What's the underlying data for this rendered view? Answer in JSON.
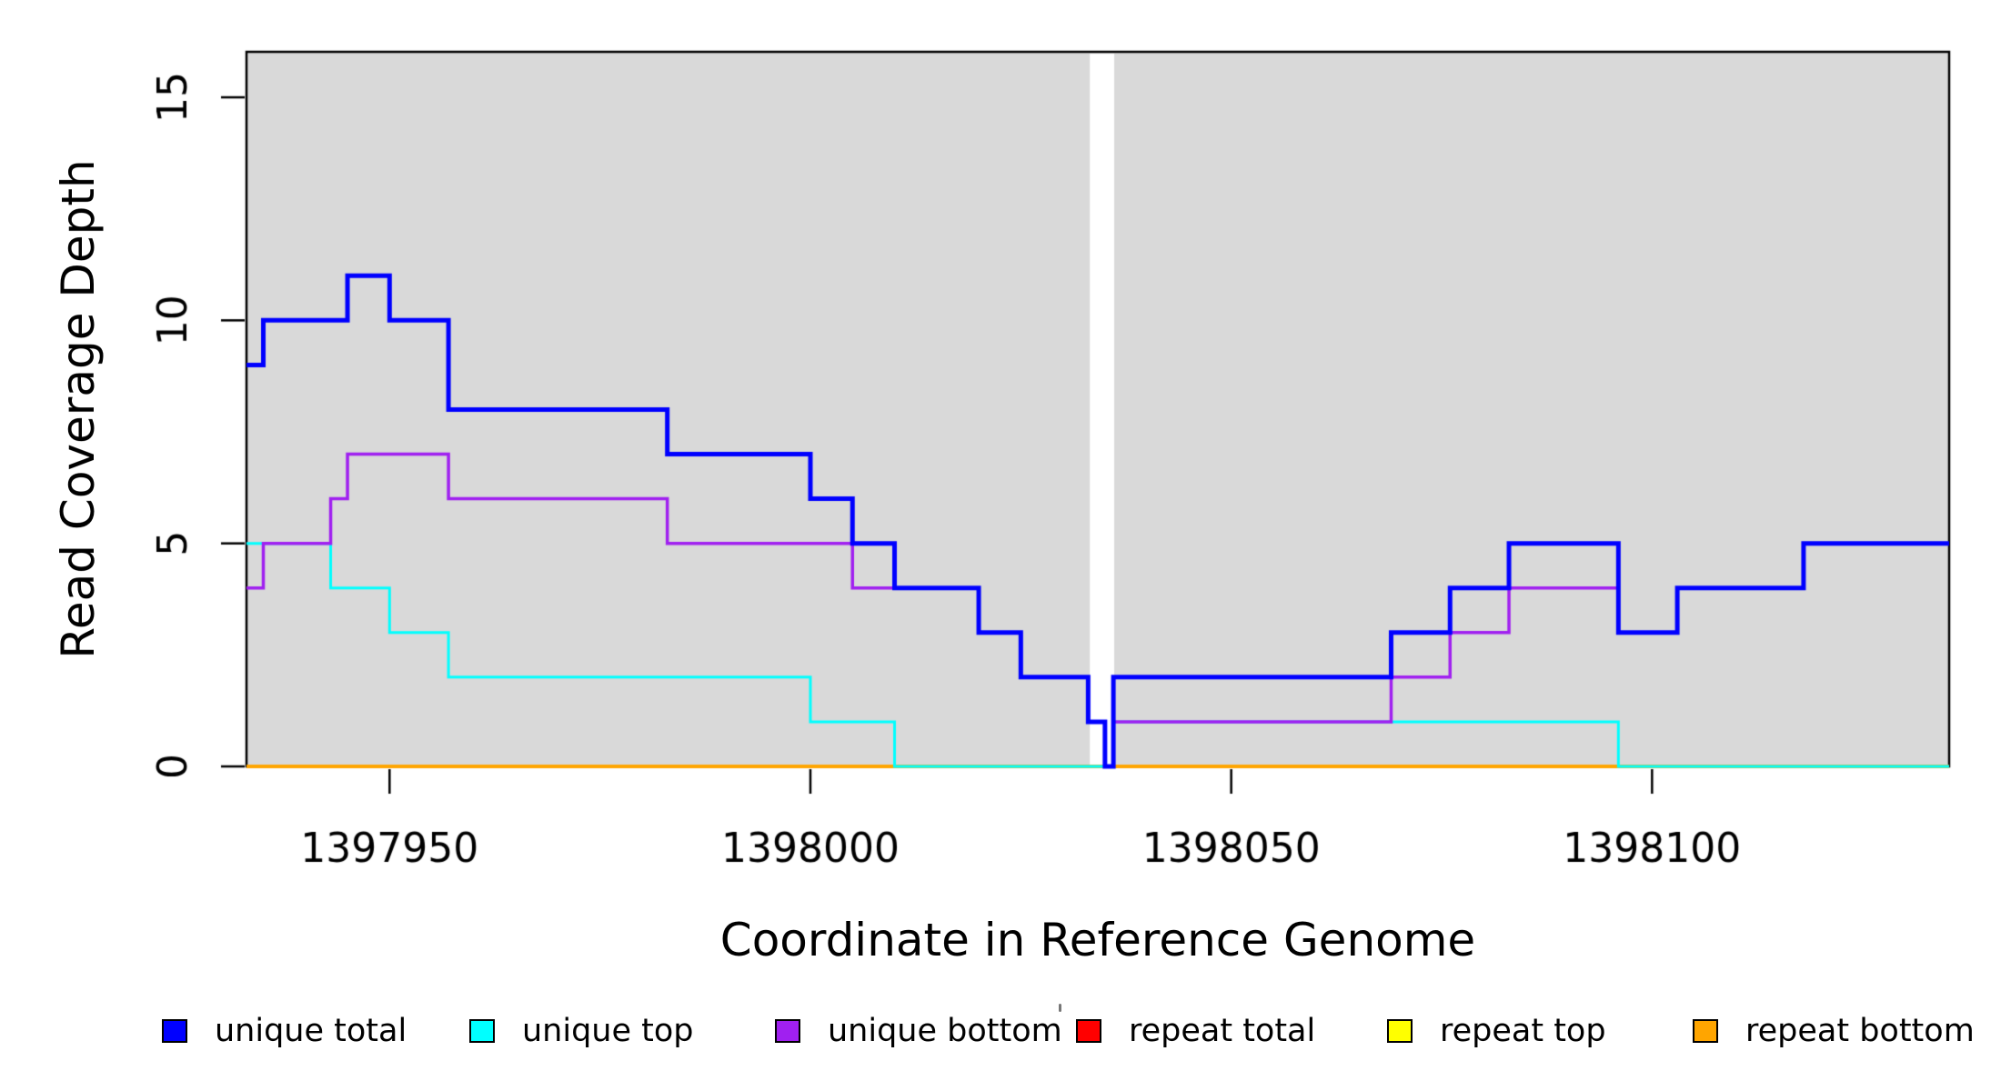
{
  "chart_data": {
    "type": "line",
    "step": true,
    "title": "",
    "xlabel": "Coordinate in Reference Genome",
    "ylabel": "Read Coverage Depth",
    "xlim": [
      1397933,
      1398135.3
    ],
    "ylim": [
      0,
      16.02
    ],
    "x_ticks": [
      1397950,
      1398000,
      1398050,
      1398100
    ],
    "x_tick_labels": [
      "1397950",
      "1398000",
      "1398050",
      "1398100"
    ],
    "y_ticks": [
      0,
      5,
      10,
      15
    ],
    "y_tick_labels": [
      "0",
      "5",
      "10",
      "15"
    ],
    "grid": false,
    "plot_background": "#d9d9d9",
    "masked_region": {
      "x0": 1398033.2,
      "x1": 1398036.1,
      "color": "#ffffff"
    },
    "legend_position": "bottom",
    "series": [
      {
        "name": "unique total",
        "color": "#0000ff",
        "width": 5,
        "x": [
          1397933,
          1397935,
          1397945,
          1397950,
          1397957,
          1397983,
          1398000,
          1398005,
          1398010,
          1398020,
          1398025,
          1398033,
          1398035,
          1398036,
          1398069,
          1398076,
          1398083,
          1398096,
          1398103,
          1398118
        ],
        "y": [
          9,
          10,
          11,
          10,
          8,
          7,
          6,
          5,
          4,
          3,
          2,
          1,
          0,
          2,
          3,
          4,
          5,
          3,
          4,
          5
        ]
      },
      {
        "name": "unique top",
        "color": "#00ffff",
        "width": 3,
        "x": [
          1397933,
          1397943,
          1397950,
          1397957,
          1398000,
          1398010,
          1398036,
          1398096
        ],
        "y": [
          5,
          4,
          3,
          2,
          1,
          0,
          1,
          0
        ]
      },
      {
        "name": "unique bottom",
        "color": "#a020f0",
        "width": 3.5,
        "x": [
          1397933,
          1397935,
          1397943,
          1397945,
          1397957,
          1397983,
          1398005,
          1398020,
          1398025,
          1398033,
          1398035,
          1398036,
          1398069,
          1398076,
          1398083,
          1398096,
          1398103,
          1398118
        ],
        "y": [
          4,
          5,
          6,
          7,
          6,
          5,
          4,
          3,
          2,
          1,
          0,
          1,
          2,
          3,
          4,
          3,
          4,
          5
        ]
      },
      {
        "name": "repeat total",
        "color": "#ff0000",
        "width": 3,
        "x": [
          1397933
        ],
        "y": [
          0
        ]
      },
      {
        "name": "repeat top",
        "color": "#ffff00",
        "width": 3,
        "x": [
          1397933
        ],
        "y": [
          0
        ]
      },
      {
        "name": "repeat bottom",
        "color": "#ffa500",
        "width": 4,
        "x": [
          1397933
        ],
        "y": [
          0
        ]
      }
    ]
  }
}
